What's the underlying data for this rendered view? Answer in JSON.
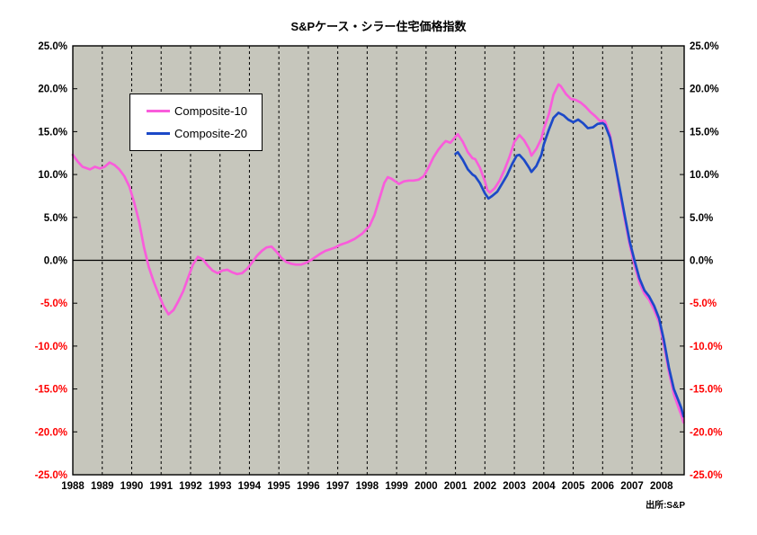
{
  "chart_data": {
    "type": "line",
    "title": "S&Pケース・シラー住宅価格指数",
    "source_note": "出所:S&P",
    "x_range": [
      1988,
      2008.77
    ],
    "y_range": [
      -25,
      25
    ],
    "grid": {
      "vertical_dashed_years": [
        1989,
        1990,
        1991,
        1992,
        1993,
        1994,
        1995,
        1996,
        1997,
        1998,
        1999,
        2000,
        2001,
        2002,
        2003,
        2004,
        2005,
        2006,
        2007,
        2008
      ],
      "zero_line": true,
      "horizontal_gridlines": false
    },
    "colors": {
      "plot_background": "#C6C6BC",
      "axis": "#000000",
      "positive_tick_label": "#000000",
      "negative_tick_label": "#FF0000"
    },
    "legend_position": "top-left",
    "y_ticks": [
      {
        "value": 25,
        "label": "25.0%"
      },
      {
        "value": 20,
        "label": "20.0%"
      },
      {
        "value": 15,
        "label": "15.0%"
      },
      {
        "value": 10,
        "label": "10.0%"
      },
      {
        "value": 5,
        "label": "5.0%"
      },
      {
        "value": 0,
        "label": "0.0%"
      },
      {
        "value": -5,
        "label": "-5.0%"
      },
      {
        "value": -10,
        "label": "-10.0%"
      },
      {
        "value": -15,
        "label": "-15.0%"
      },
      {
        "value": -20,
        "label": "-20.0%"
      },
      {
        "value": -25,
        "label": "-25.0%"
      }
    ],
    "x_ticks": [
      {
        "value": 1988,
        "label": "1988"
      },
      {
        "value": 1989,
        "label": "1989"
      },
      {
        "value": 1990,
        "label": "1990"
      },
      {
        "value": 1991,
        "label": "1991"
      },
      {
        "value": 1992,
        "label": "1992"
      },
      {
        "value": 1993,
        "label": "1993"
      },
      {
        "value": 1994,
        "label": "1994"
      },
      {
        "value": 1995,
        "label": "1995"
      },
      {
        "value": 1996,
        "label": "1996"
      },
      {
        "value": 1997,
        "label": "1997"
      },
      {
        "value": 1998,
        "label": "1998"
      },
      {
        "value": 1999,
        "label": "1999"
      },
      {
        "value": 2000,
        "label": "2000"
      },
      {
        "value": 2001,
        "label": "2001"
      },
      {
        "value": 2002,
        "label": "2002"
      },
      {
        "value": 2003,
        "label": "2003"
      },
      {
        "value": 2004,
        "label": "2004"
      },
      {
        "value": 2005,
        "label": "2005"
      },
      {
        "value": 2006,
        "label": "2006"
      },
      {
        "value": 2007,
        "label": "2007"
      },
      {
        "value": 2008,
        "label": "2008"
      }
    ],
    "series": [
      {
        "name": "Composite-10",
        "color": "#F95CDB",
        "points": [
          [
            1988.0,
            12.3
          ],
          [
            1988.17,
            11.5
          ],
          [
            1988.33,
            10.9
          ],
          [
            1988.58,
            10.6
          ],
          [
            1988.75,
            10.9
          ],
          [
            1988.92,
            10.7
          ],
          [
            1989.08,
            10.9
          ],
          [
            1989.25,
            11.4
          ],
          [
            1989.42,
            11.1
          ],
          [
            1989.58,
            10.6
          ],
          [
            1989.75,
            9.8
          ],
          [
            1989.92,
            8.6
          ],
          [
            1990.08,
            6.8
          ],
          [
            1990.25,
            4.5
          ],
          [
            1990.42,
            1.5
          ],
          [
            1990.58,
            -0.8
          ],
          [
            1990.75,
            -2.5
          ],
          [
            1990.92,
            -4.0
          ],
          [
            1991.08,
            -5.3
          ],
          [
            1991.25,
            -6.3
          ],
          [
            1991.42,
            -5.8
          ],
          [
            1991.58,
            -4.8
          ],
          [
            1991.75,
            -3.6
          ],
          [
            1991.92,
            -2.0
          ],
          [
            1992.08,
            -0.5
          ],
          [
            1992.25,
            0.4
          ],
          [
            1992.42,
            0.1
          ],
          [
            1992.58,
            -0.6
          ],
          [
            1992.75,
            -1.2
          ],
          [
            1992.92,
            -1.5
          ],
          [
            1993.08,
            -1.2
          ],
          [
            1993.25,
            -1.1
          ],
          [
            1993.42,
            -1.4
          ],
          [
            1993.58,
            -1.6
          ],
          [
            1993.75,
            -1.5
          ],
          [
            1993.92,
            -1.0
          ],
          [
            1994.08,
            -0.3
          ],
          [
            1994.25,
            0.5
          ],
          [
            1994.42,
            1.1
          ],
          [
            1994.58,
            1.5
          ],
          [
            1994.75,
            1.6
          ],
          [
            1994.92,
            1.0
          ],
          [
            1995.08,
            0.3
          ],
          [
            1995.25,
            -0.2
          ],
          [
            1995.42,
            -0.4
          ],
          [
            1995.58,
            -0.5
          ],
          [
            1995.75,
            -0.5
          ],
          [
            1995.92,
            -0.3
          ],
          [
            1996.08,
            0.0
          ],
          [
            1996.25,
            0.4
          ],
          [
            1996.42,
            0.8
          ],
          [
            1996.58,
            1.1
          ],
          [
            1996.75,
            1.3
          ],
          [
            1996.92,
            1.5
          ],
          [
            1997.08,
            1.8
          ],
          [
            1997.33,
            2.1
          ],
          [
            1997.58,
            2.5
          ],
          [
            1997.83,
            3.1
          ],
          [
            1998.08,
            4.0
          ],
          [
            1998.25,
            5.3
          ],
          [
            1998.42,
            7.2
          ],
          [
            1998.58,
            9.0
          ],
          [
            1998.7,
            9.7
          ],
          [
            1998.83,
            9.5
          ],
          [
            1999.0,
            9.1
          ],
          [
            1999.08,
            8.9
          ],
          [
            1999.25,
            9.2
          ],
          [
            1999.42,
            9.3
          ],
          [
            1999.58,
            9.3
          ],
          [
            1999.75,
            9.4
          ],
          [
            1999.92,
            9.8
          ],
          [
            2000.08,
            10.8
          ],
          [
            2000.25,
            12.0
          ],
          [
            2000.42,
            12.9
          ],
          [
            2000.58,
            13.6
          ],
          [
            2000.67,
            13.9
          ],
          [
            2000.83,
            13.7
          ],
          [
            2001.0,
            14.4
          ],
          [
            2001.08,
            14.7
          ],
          [
            2001.25,
            13.8
          ],
          [
            2001.42,
            12.6
          ],
          [
            2001.58,
            11.9
          ],
          [
            2001.67,
            11.8
          ],
          [
            2001.83,
            10.8
          ],
          [
            2002.0,
            9.2
          ],
          [
            2002.08,
            8.2
          ],
          [
            2002.17,
            7.9
          ],
          [
            2002.33,
            8.4
          ],
          [
            2002.5,
            9.3
          ],
          [
            2002.67,
            10.6
          ],
          [
            2002.83,
            12.0
          ],
          [
            2003.0,
            13.8
          ],
          [
            2003.17,
            14.6
          ],
          [
            2003.33,
            14.0
          ],
          [
            2003.5,
            13.0
          ],
          [
            2003.58,
            12.2
          ],
          [
            2003.75,
            13.0
          ],
          [
            2003.92,
            14.2
          ],
          [
            2004.0,
            15.3
          ],
          [
            2004.17,
            17.0
          ],
          [
            2004.33,
            19.3
          ],
          [
            2004.5,
            20.5
          ],
          [
            2004.58,
            20.3
          ],
          [
            2004.75,
            19.4
          ],
          [
            2004.92,
            18.8
          ],
          [
            2005.08,
            18.7
          ],
          [
            2005.25,
            18.4
          ],
          [
            2005.42,
            17.9
          ],
          [
            2005.58,
            17.3
          ],
          [
            2005.75,
            16.8
          ],
          [
            2005.92,
            16.2
          ],
          [
            2006.0,
            16.3
          ],
          [
            2006.08,
            16.2
          ],
          [
            2006.25,
            14.6
          ],
          [
            2006.42,
            11.5
          ],
          [
            2006.58,
            8.0
          ],
          [
            2006.75,
            4.8
          ],
          [
            2006.92,
            1.8
          ],
          [
            2007.08,
            -0.5
          ],
          [
            2007.25,
            -2.6
          ],
          [
            2007.42,
            -3.9
          ],
          [
            2007.58,
            -4.6
          ],
          [
            2007.75,
            -5.8
          ],
          [
            2007.92,
            -7.2
          ],
          [
            2008.08,
            -9.8
          ],
          [
            2008.25,
            -13.0
          ],
          [
            2008.42,
            -15.6
          ],
          [
            2008.58,
            -17.2
          ],
          [
            2008.67,
            -18.0
          ],
          [
            2008.75,
            -18.9
          ]
        ]
      },
      {
        "name": "Composite-20",
        "color": "#1C49C8",
        "points": [
          [
            2001.0,
            12.4
          ],
          [
            2001.08,
            12.6
          ],
          [
            2001.25,
            11.7
          ],
          [
            2001.42,
            10.6
          ],
          [
            2001.58,
            10.0
          ],
          [
            2001.67,
            9.8
          ],
          [
            2001.83,
            9.0
          ],
          [
            2002.0,
            7.8
          ],
          [
            2002.12,
            7.2
          ],
          [
            2002.25,
            7.5
          ],
          [
            2002.42,
            8.0
          ],
          [
            2002.58,
            8.9
          ],
          [
            2002.75,
            9.9
          ],
          [
            2002.92,
            11.2
          ],
          [
            2003.08,
            12.2
          ],
          [
            2003.17,
            12.3
          ],
          [
            2003.33,
            11.7
          ],
          [
            2003.5,
            10.8
          ],
          [
            2003.58,
            10.3
          ],
          [
            2003.75,
            11.0
          ],
          [
            2003.92,
            12.3
          ],
          [
            2004.0,
            13.5
          ],
          [
            2004.17,
            15.2
          ],
          [
            2004.33,
            16.6
          ],
          [
            2004.5,
            17.2
          ],
          [
            2004.67,
            16.9
          ],
          [
            2004.83,
            16.4
          ],
          [
            2005.0,
            16.1
          ],
          [
            2005.17,
            16.4
          ],
          [
            2005.33,
            16.0
          ],
          [
            2005.5,
            15.4
          ],
          [
            2005.67,
            15.5
          ],
          [
            2005.83,
            15.9
          ],
          [
            2006.0,
            16.0
          ],
          [
            2006.08,
            15.8
          ],
          [
            2006.25,
            14.3
          ],
          [
            2006.42,
            11.3
          ],
          [
            2006.58,
            8.4
          ],
          [
            2006.75,
            5.2
          ],
          [
            2006.92,
            2.2
          ],
          [
            2007.08,
            0.0
          ],
          [
            2007.25,
            -2.1
          ],
          [
            2007.42,
            -3.5
          ],
          [
            2007.58,
            -4.2
          ],
          [
            2007.75,
            -5.3
          ],
          [
            2007.92,
            -6.8
          ],
          [
            2008.08,
            -9.3
          ],
          [
            2008.25,
            -12.5
          ],
          [
            2008.42,
            -15.0
          ],
          [
            2008.58,
            -16.4
          ],
          [
            2008.67,
            -17.2
          ],
          [
            2008.75,
            -18.2
          ]
        ]
      }
    ]
  }
}
